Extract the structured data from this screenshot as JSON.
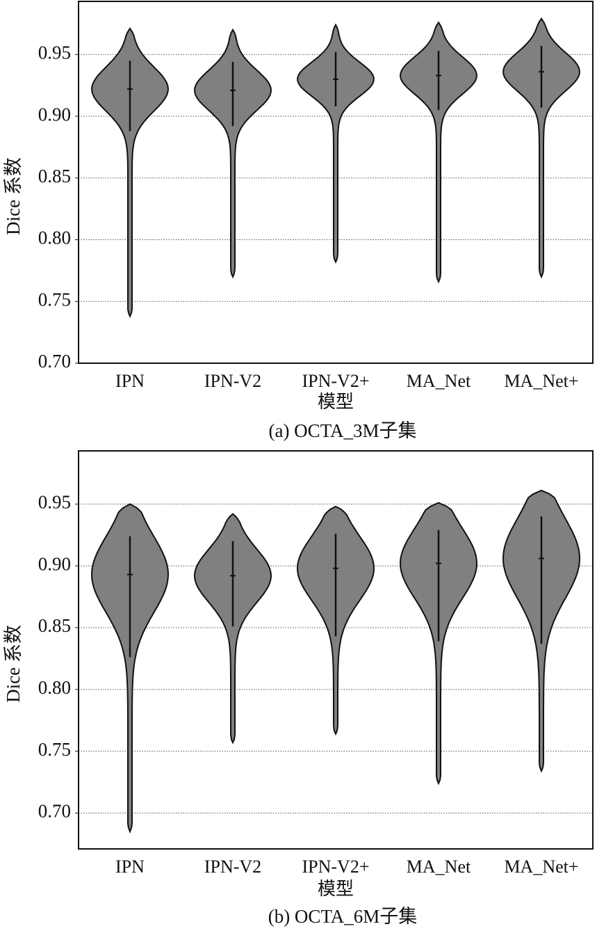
{
  "chart_data": [
    {
      "type": "violin",
      "caption": "(a) OCTA_3M子集",
      "x_label": "模型",
      "y_label": "Dice 系数",
      "categories": [
        "IPN",
        "IPN-V2",
        "IPN-V2+",
        "MA_Net",
        "MA_Net+"
      ],
      "min": [
        0.738,
        0.77,
        0.782,
        0.766,
        0.77
      ],
      "max": [
        0.971,
        0.97,
        0.974,
        0.976,
        0.979
      ],
      "median": [
        0.922,
        0.921,
        0.93,
        0.933,
        0.936
      ],
      "whisker_low": [
        0.888,
        0.892,
        0.908,
        0.905,
        0.907
      ],
      "whisker_high": [
        0.945,
        0.944,
        0.952,
        0.953,
        0.957
      ],
      "color": "#808080",
      "ylim": [
        0.7,
        0.993
      ],
      "yticks": [
        {
          "value": 0.7,
          "label": "0.70"
        },
        0.75,
        {
          "value": 0.8,
          "label": "0.80"
        },
        0.85,
        {
          "value": 0.9,
          "label": "0.90"
        },
        0.95
      ],
      "grid": true
    },
    {
      "type": "violin",
      "caption": "(b) OCTA_6M子集",
      "x_label": "模型",
      "y_label": "Dice 系数",
      "categories": [
        "IPN",
        "IPN-V2",
        "IPN-V2+",
        "MA_Net",
        "MA_Net+"
      ],
      "min": [
        0.685,
        0.757,
        0.764,
        0.724,
        0.734
      ],
      "max": [
        0.95,
        0.942,
        0.948,
        0.951,
        0.961
      ],
      "median": [
        0.893,
        0.892,
        0.898,
        0.902,
        0.906
      ],
      "whisker_low": [
        0.826,
        0.851,
        0.843,
        0.839,
        0.837
      ],
      "whisker_high": [
        0.924,
        0.92,
        0.926,
        0.929,
        0.94
      ],
      "color": "#808080",
      "ylim": [
        0.671,
        0.993
      ],
      "yticks": [
        {
          "value": 0.7,
          "label": "0.70"
        },
        0.75,
        {
          "value": 0.8,
          "label": "0.80"
        },
        0.85,
        {
          "value": 0.9,
          "label": "0.90"
        },
        0.95
      ],
      "grid": true
    }
  ]
}
